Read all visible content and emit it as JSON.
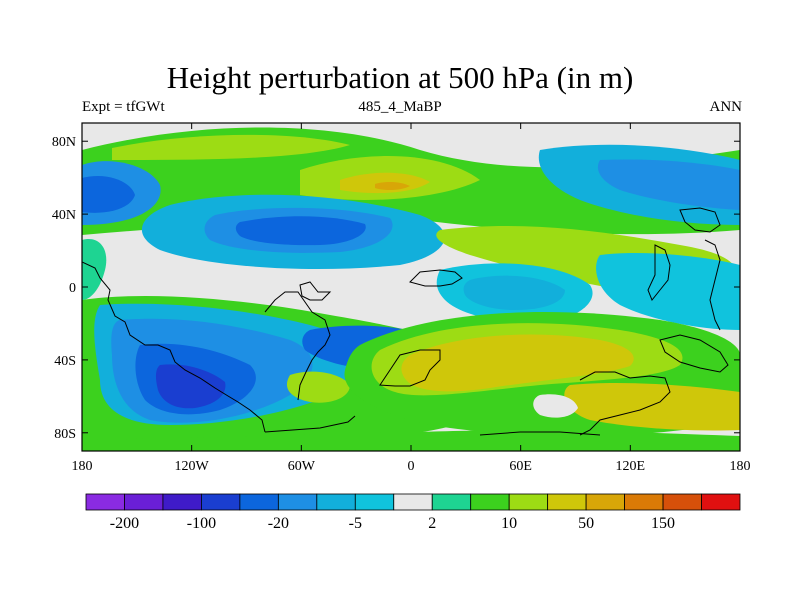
{
  "chart_data": {
    "type": "heatmap",
    "title": "Height perturbation at 500 hPa (in m)",
    "subtitle_left": "Expt = tfGWt",
    "subtitle_center": "485_4_MaBP",
    "subtitle_right": "ANN",
    "x_range": [
      -180,
      180
    ],
    "y_range": [
      -90,
      90
    ],
    "x_ticks": [
      {
        "value": -180,
        "label": "180"
      },
      {
        "value": -120,
        "label": "120W"
      },
      {
        "value": -60,
        "label": "60W"
      },
      {
        "value": 0,
        "label": "0"
      },
      {
        "value": 60,
        "label": "60E"
      },
      {
        "value": 120,
        "label": "120E"
      },
      {
        "value": 180,
        "label": "180"
      }
    ],
    "y_ticks": [
      {
        "value": 80,
        "label": "80N"
      },
      {
        "value": 40,
        "label": "40N"
      },
      {
        "value": 0,
        "label": "0"
      },
      {
        "value": -40,
        "label": "40S"
      },
      {
        "value": -80,
        "label": "80S"
      }
    ],
    "colorbar": {
      "colors": [
        "#8a2be2",
        "#6a1fd6",
        "#3f1bc8",
        "#1a3ed0",
        "#0c66dd",
        "#1e8fe4",
        "#12afdb",
        "#10c3dd",
        "#e8e8e8",
        "#1ed492",
        "#3cd11e",
        "#9ddc14",
        "#cfc70a",
        "#d8a608",
        "#da7a06",
        "#d6500a",
        "#e01010"
      ],
      "tick_labels": [
        "-200",
        "-100",
        "-20",
        "-5",
        "2",
        "10",
        "50",
        "150"
      ]
    }
  }
}
